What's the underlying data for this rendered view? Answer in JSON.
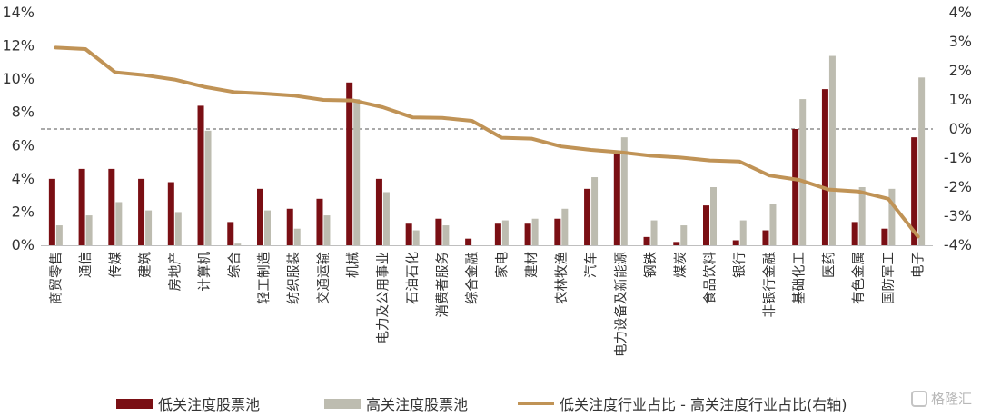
{
  "chart_data": {
    "type": "bar",
    "categories": [
      "商贸零售",
      "通信",
      "传媒",
      "建筑",
      "房地产",
      "计算机",
      "综合",
      "轻工制造",
      "纺织服装",
      "交通运输",
      "机械",
      "电力及公用事业",
      "石油石化",
      "消费者服务",
      "综合金融",
      "家电",
      "建材",
      "农林牧渔",
      "汽车",
      "电力设备及新能源",
      "钢铁",
      "煤炭",
      "食品饮料",
      "银行",
      "非银行金融",
      "基础化工",
      "医药",
      "有色金属",
      "国防军工",
      "电子"
    ],
    "series": [
      {
        "name": "低关注度股票池",
        "axis": "left",
        "color": "#7a0f14",
        "values": [
          4.0,
          4.6,
          4.6,
          4.0,
          3.8,
          8.4,
          1.4,
          3.4,
          2.2,
          2.8,
          9.8,
          4.0,
          1.3,
          1.6,
          0.4,
          1.3,
          1.3,
          1.6,
          3.4,
          5.5,
          0.5,
          0.2,
          2.4,
          0.3,
          0.9,
          7.0,
          9.4,
          1.4,
          1.0,
          6.5
        ]
      },
      {
        "name": "高关注度股票池",
        "axis": "left",
        "color": "#bdbcb0",
        "values": [
          1.2,
          1.8,
          2.6,
          2.1,
          2.0,
          6.9,
          0.1,
          2.1,
          1.0,
          1.8,
          8.8,
          3.2,
          0.9,
          1.2,
          0.0,
          1.5,
          1.6,
          2.2,
          4.1,
          6.5,
          1.5,
          1.2,
          3.5,
          1.5,
          2.5,
          8.8,
          11.4,
          3.5,
          3.4,
          10.1
        ]
      },
      {
        "name": "低关注度行业占比 - 高关注度行业占比(右轴)",
        "axis": "right",
        "type": "line",
        "color": "#c09356",
        "values": [
          2.8,
          2.75,
          1.95,
          1.85,
          1.7,
          1.45,
          1.27,
          1.22,
          1.15,
          1.0,
          0.98,
          0.75,
          0.4,
          0.38,
          0.28,
          -0.3,
          -0.33,
          -0.6,
          -0.72,
          -0.8,
          -0.92,
          -0.98,
          -1.08,
          -1.12,
          -1.6,
          -1.75,
          -2.08,
          -2.15,
          -2.4,
          -3.7
        ]
      }
    ],
    "ylim": [
      0,
      14
    ],
    "y2lim": [
      -4,
      4
    ],
    "yticks": [
      "0%",
      "2%",
      "4%",
      "6%",
      "8%",
      "10%",
      "12%",
      "14%"
    ],
    "y2ticks": [
      "-4%",
      "-3%",
      "-2%",
      "-1%",
      "0%",
      "1%",
      "2%",
      "3%",
      "4%"
    ],
    "reference_line": {
      "axis": "right",
      "value": 0,
      "style": "dashed"
    },
    "legend_position": "bottom"
  },
  "watermark": {
    "text": "格隆汇"
  }
}
